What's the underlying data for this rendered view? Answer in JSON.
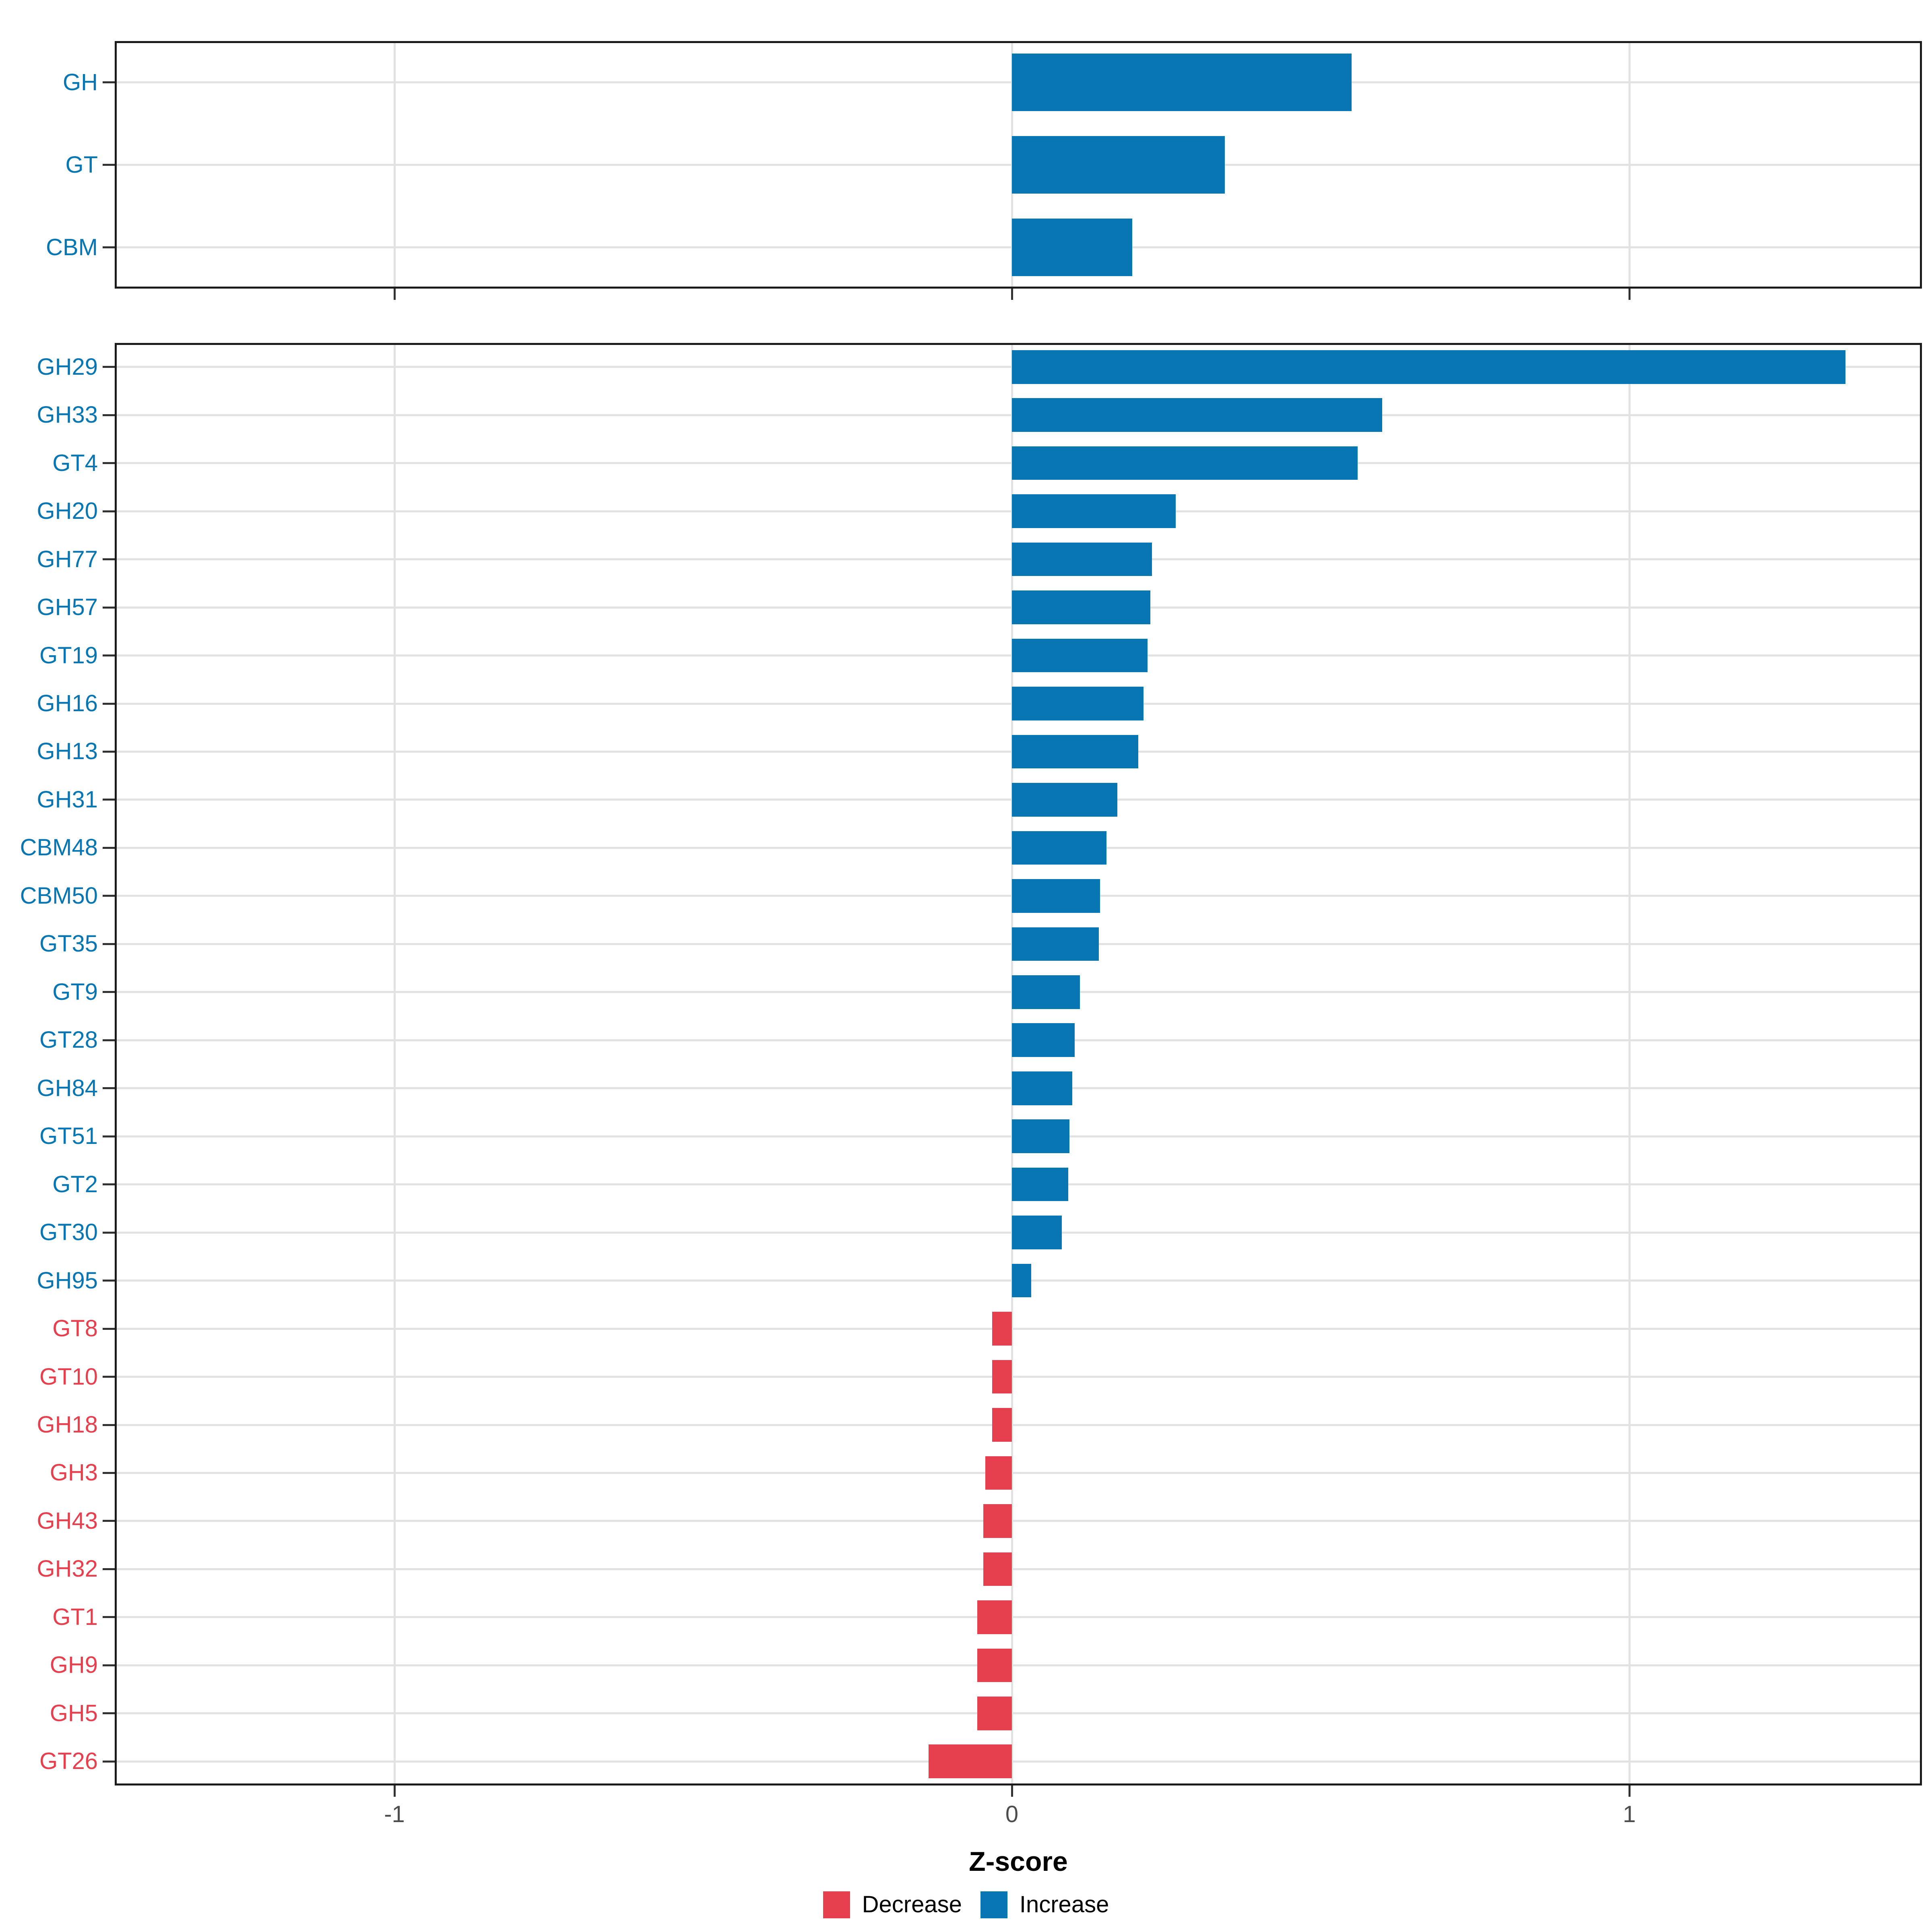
{
  "figure": {
    "xlabel": "Z-score",
    "x_ticks": [
      {
        "value": -1,
        "label": "-1"
      },
      {
        "value": 0,
        "label": "0"
      },
      {
        "value": 1,
        "label": "1"
      }
    ],
    "legend": [
      {
        "label": "Decrease",
        "direction": "decrease",
        "color": "#e6404e"
      },
      {
        "label": "Increase",
        "direction": "increase",
        "color": "#0776b2"
      }
    ],
    "colors": {
      "increase": "#0776b2",
      "decrease": "#e6404e",
      "grid": "#e2e2e2",
      "panel_border": "#1b1b1b",
      "tick_mark": "#333333",
      "axis_text": "#4d4d4d",
      "axis_title": "#000000"
    }
  },
  "chart_data": [
    {
      "type": "bar",
      "orientation": "horizontal",
      "panel": "top-cazyme-classes",
      "title": "",
      "xlabel": "Z-score",
      "xlim": [
        -1.45,
        1.47
      ],
      "grid": "major-only",
      "categories": [
        "GH",
        "GT",
        "CBM"
      ],
      "values": [
        0.55,
        0.345,
        0.195
      ]
    },
    {
      "type": "bar",
      "orientation": "horizontal",
      "panel": "bottom-cazyme-families",
      "title": "",
      "xlabel": "Z-score",
      "xlim": [
        -1.45,
        1.47
      ],
      "grid": "major-only",
      "legend_position": "bottom",
      "categories": [
        "GH29",
        "GH33",
        "GT4",
        "GH20",
        "GH77",
        "GH57",
        "GT19",
        "GH16",
        "GH13",
        "GH31",
        "CBM48",
        "CBM50",
        "GT35",
        "GT9",
        "GT28",
        "GH84",
        "GT51",
        "GT2",
        "GT30",
        "GH95",
        "GT8",
        "GT10",
        "GH18",
        "GH3",
        "GH43",
        "GH32",
        "GT1",
        "GH9",
        "GH5",
        "GT26"
      ],
      "values": [
        1.35,
        0.6,
        0.56,
        0.265,
        0.227,
        0.224,
        0.22,
        0.213,
        0.205,
        0.171,
        0.153,
        0.143,
        0.141,
        0.11,
        0.102,
        0.098,
        0.093,
        0.091,
        0.081,
        0.031,
        -0.032,
        -0.032,
        -0.032,
        -0.043,
        -0.046,
        -0.046,
        -0.056,
        -0.056,
        -0.056,
        -0.135
      ]
    }
  ]
}
